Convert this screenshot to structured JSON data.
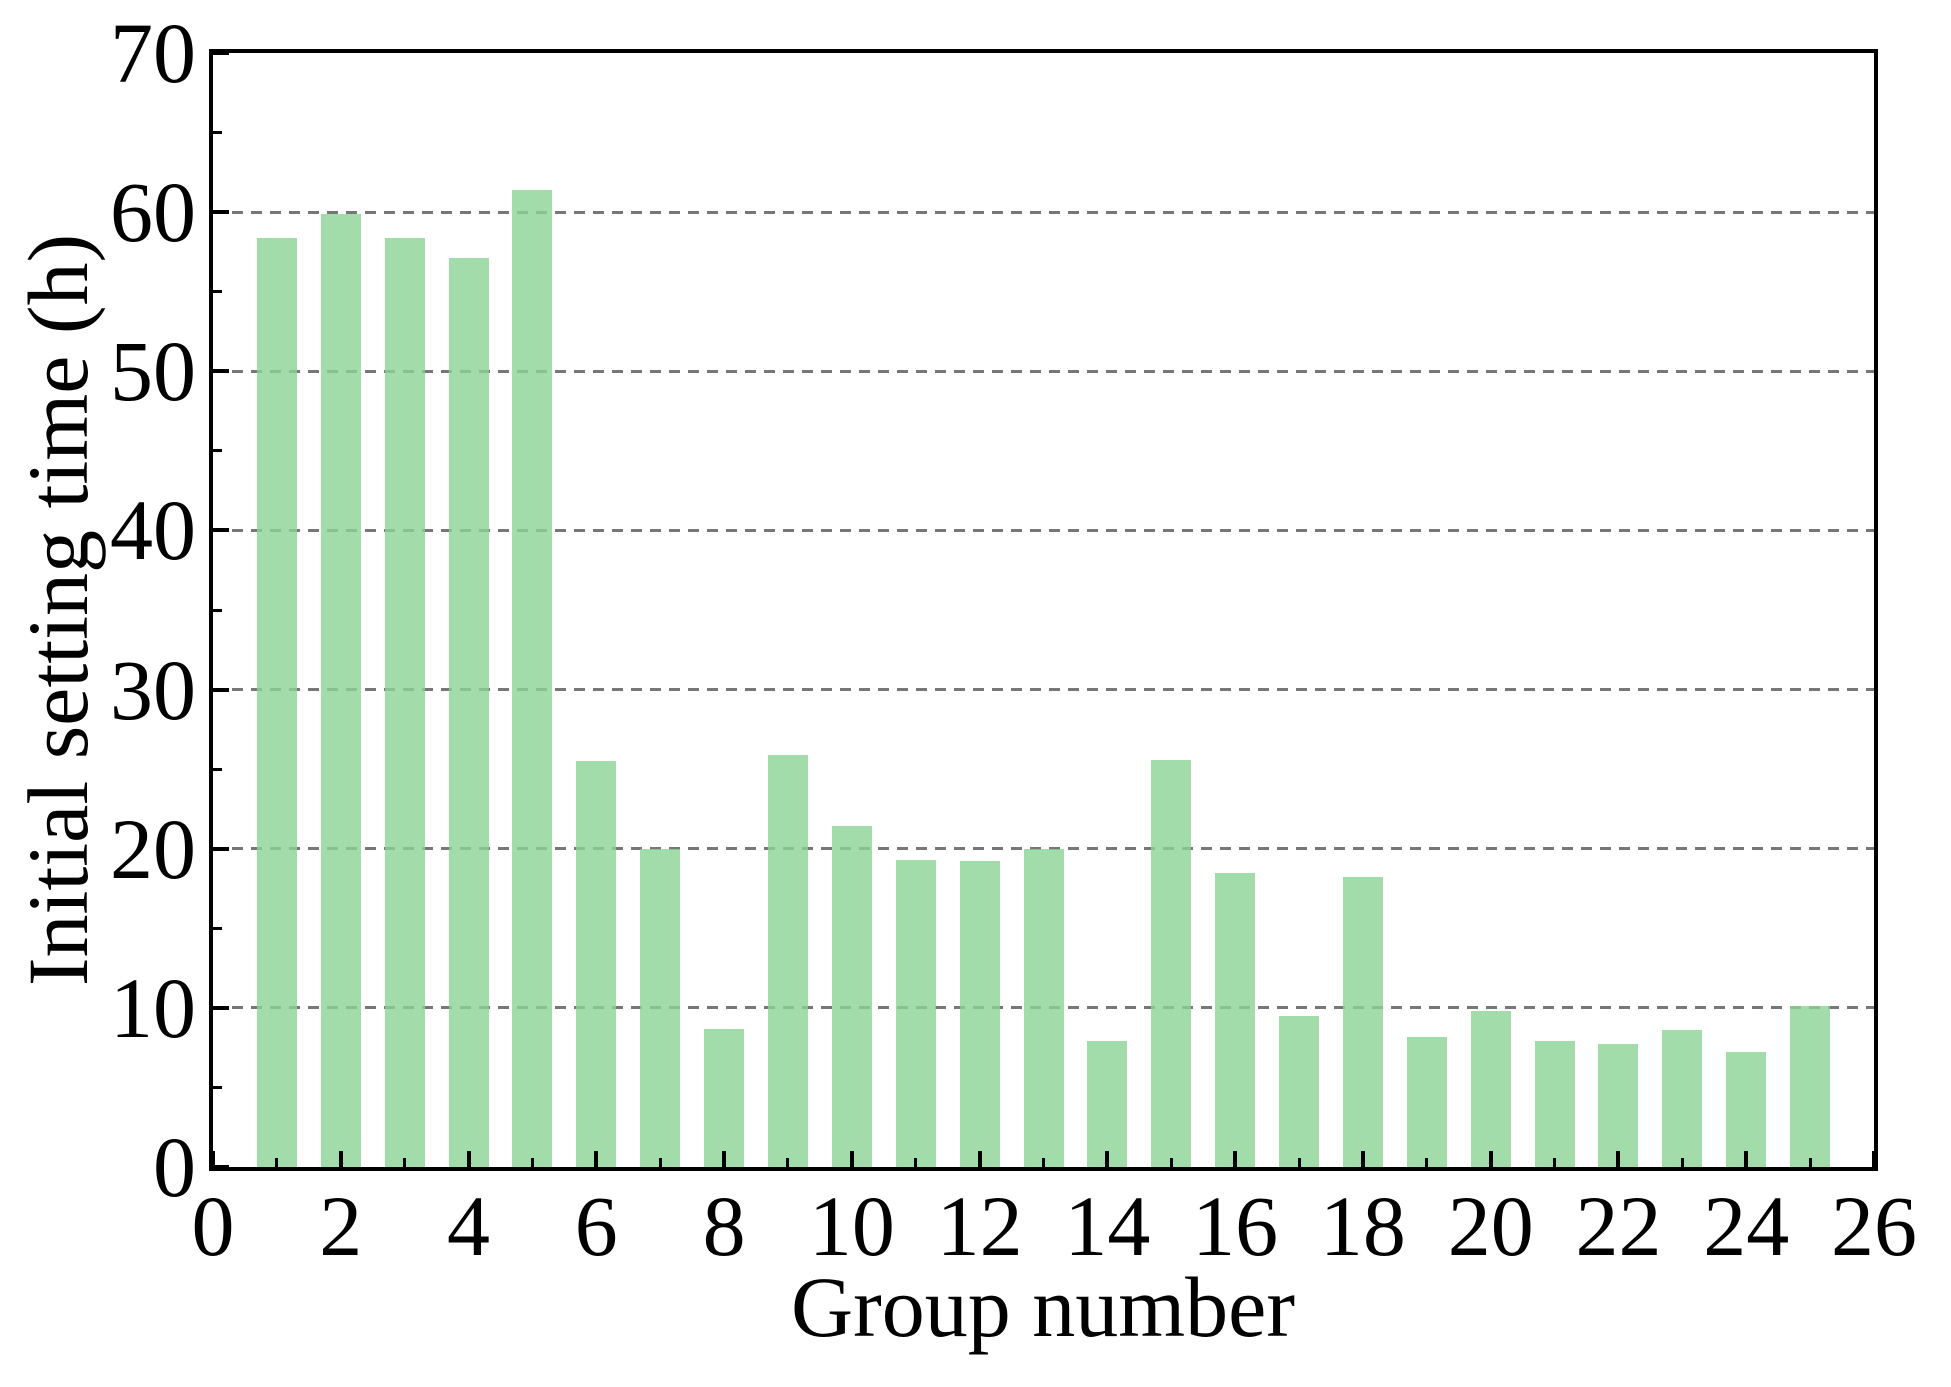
{
  "chart_data": {
    "type": "bar",
    "title": "",
    "xlabel": "Group number",
    "ylabel": "Initial setting time (h)",
    "categories": [
      1,
      2,
      3,
      4,
      5,
      6,
      7,
      8,
      9,
      10,
      11,
      12,
      13,
      14,
      15,
      16,
      17,
      18,
      19,
      20,
      21,
      22,
      23,
      24,
      25
    ],
    "values": [
      58.4,
      59.9,
      58.4,
      57.1,
      61.4,
      25.5,
      20.0,
      8.7,
      25.9,
      21.4,
      19.3,
      19.2,
      20.0,
      7.9,
      25.6,
      18.5,
      9.5,
      18.2,
      8.2,
      9.8,
      7.9,
      7.7,
      8.6,
      7.2,
      10.1
    ],
    "xlim": [
      0,
      26
    ],
    "ylim": [
      0,
      70
    ],
    "xticks": [
      0,
      2,
      4,
      6,
      8,
      10,
      12,
      14,
      16,
      18,
      20,
      22,
      24,
      26
    ],
    "xticks_minor": [
      1,
      3,
      5,
      7,
      9,
      11,
      13,
      15,
      17,
      19,
      21,
      23,
      25
    ],
    "yticks": [
      0,
      10,
      20,
      30,
      40,
      50,
      60,
      70
    ],
    "yticks_minor": [
      5,
      15,
      25,
      35,
      45,
      55,
      65
    ],
    "gridlines_at": [
      10,
      20,
      30,
      40,
      50,
      60
    ],
    "grid_style": "horizontal-dashed",
    "legend": "none",
    "bar_color": "#a1dcaa",
    "gridline_color": "#777777",
    "axis_color": "#000000",
    "background_color": "#ffffff"
  }
}
